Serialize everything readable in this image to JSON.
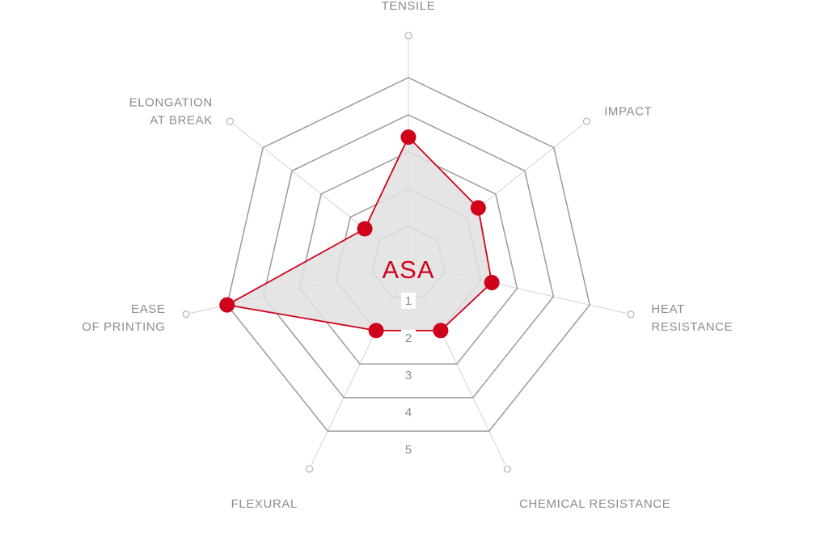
{
  "chart_data": {
    "type": "radar",
    "title": "ASA",
    "axes": [
      "TENSILE",
      "IMPACT",
      "HEAT RESISTANCE",
      "CHEMICAL RESISTANCE",
      "FLEXURAL",
      "EASE OF PRINTING",
      "ELONGATION AT BREAK"
    ],
    "axis_label_lines": [
      [
        "TENSILE"
      ],
      [
        "IMPACT"
      ],
      [
        "HEAT",
        "RESISTANCE"
      ],
      [
        "CHEMICAL RESISTANCE"
      ],
      [
        "FLEXURAL"
      ],
      [
        "EASE",
        "OF PRINTING"
      ],
      [
        "ELONGATION",
        "AT BREAK"
      ]
    ],
    "ticks": [
      "1",
      "2",
      "3",
      "4",
      "5"
    ],
    "range": [
      0,
      5
    ],
    "series": [
      {
        "values": [
          3.4,
          2.4,
          2.3,
          2.0,
          2.0,
          5.0,
          1.5
        ]
      }
    ],
    "colors": {
      "series": "#d0021b",
      "fill": "#e0e0e0",
      "grid": "#9a9a9a",
      "spoke": "#d2d2d2"
    }
  }
}
